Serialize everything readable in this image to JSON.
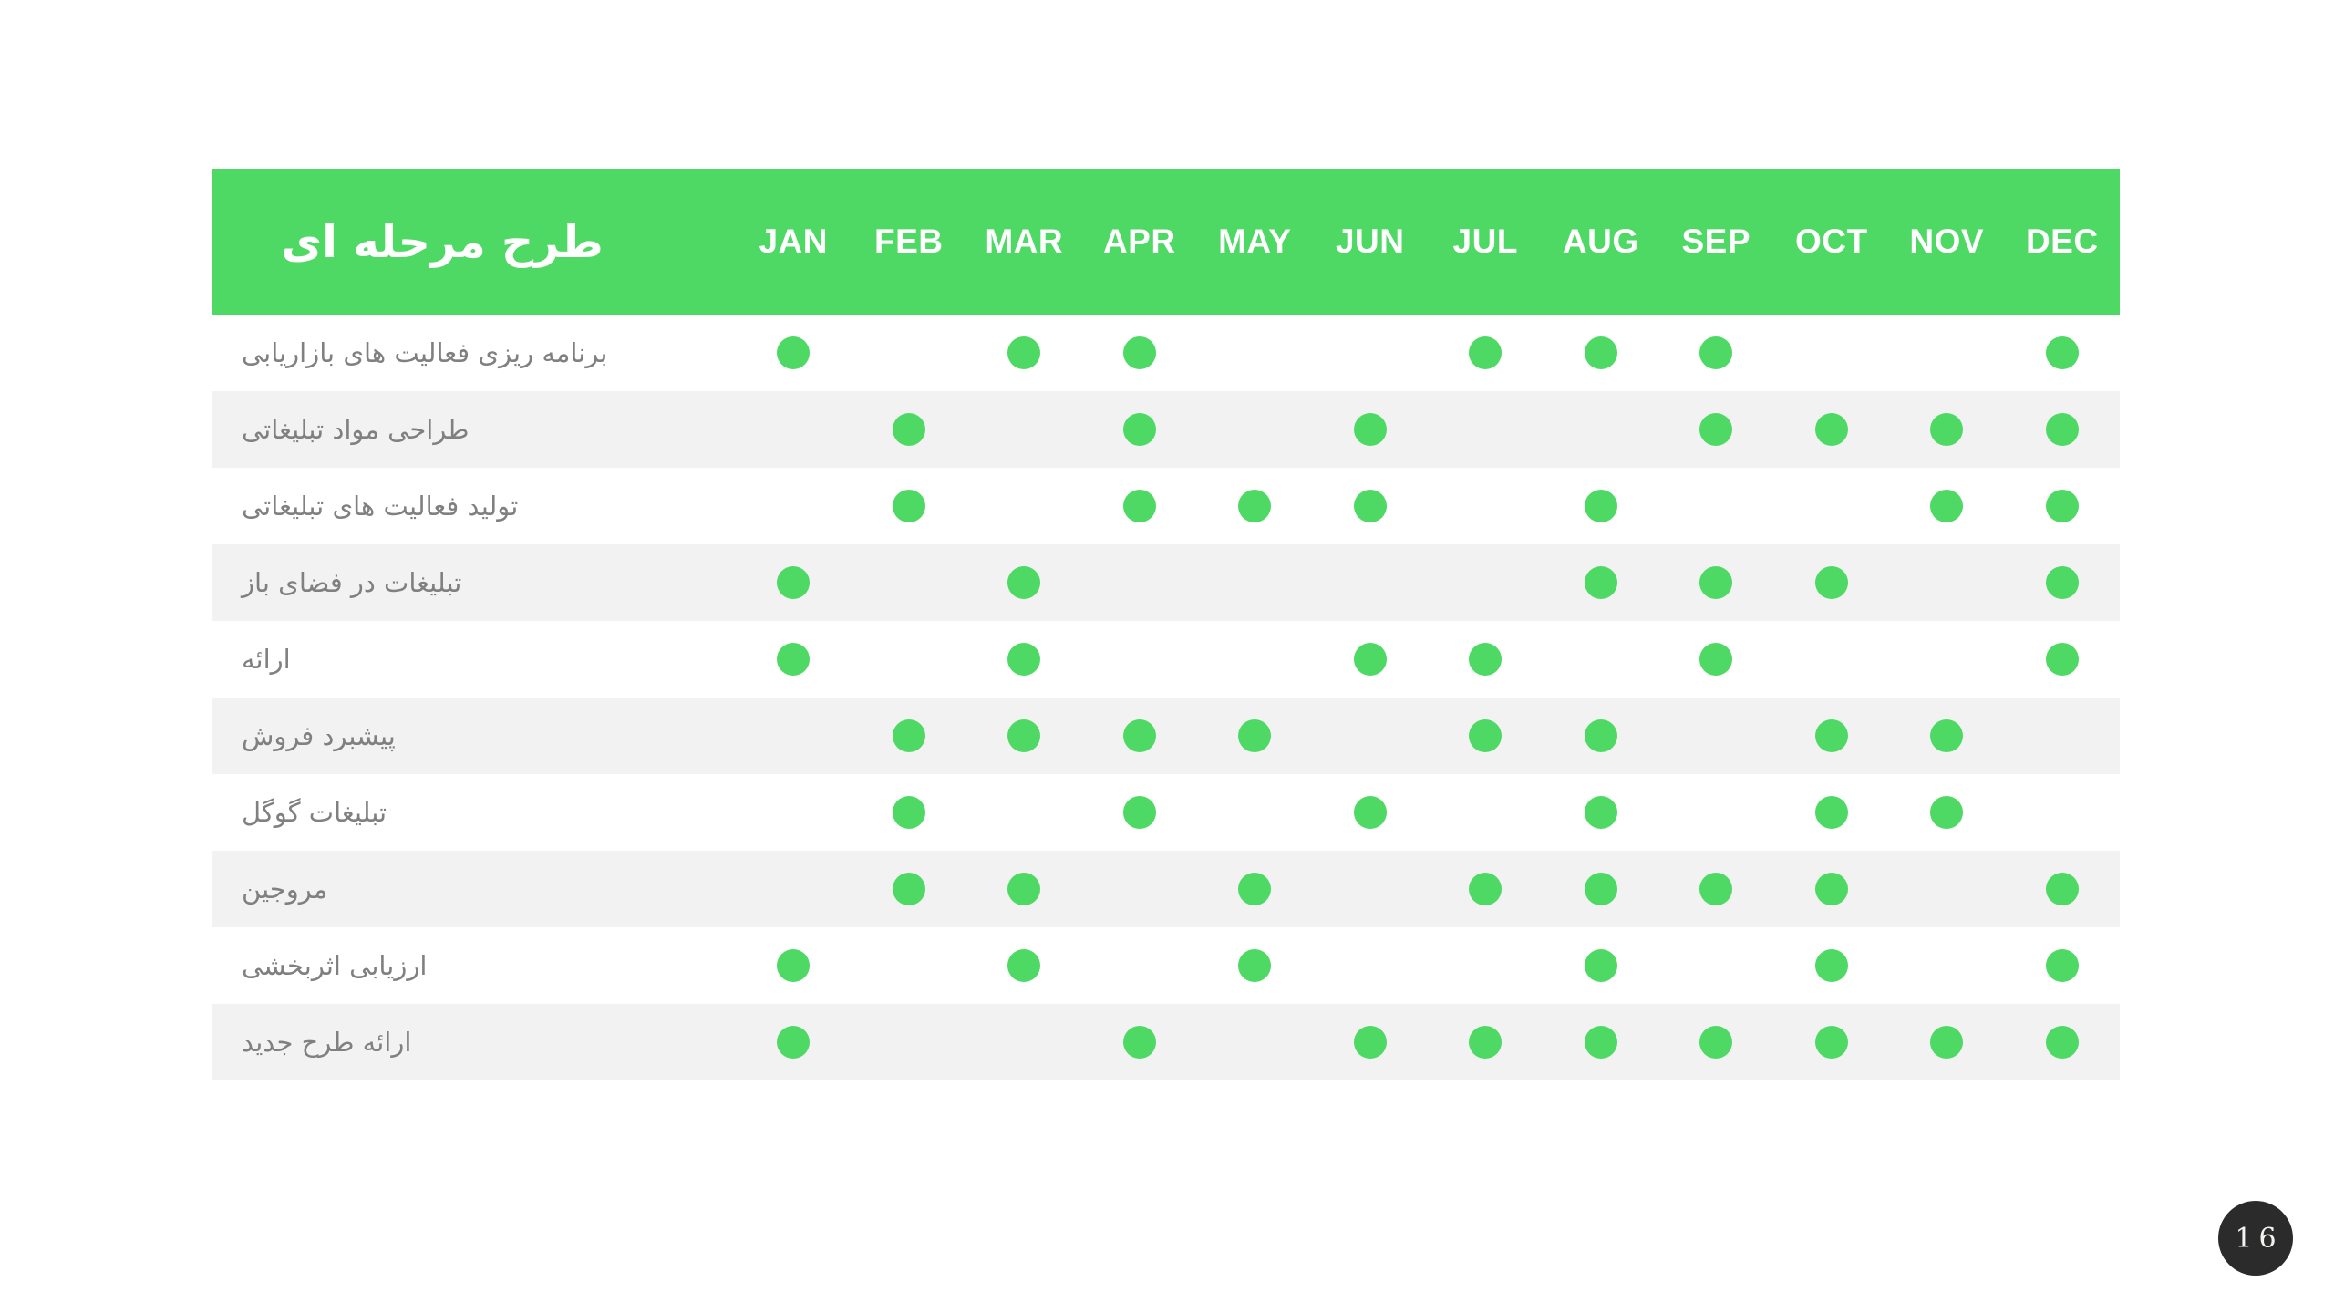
{
  "chart_data": {
    "type": "table",
    "title": "طرح مرحله ای",
    "columns": [
      "JAN",
      "FEB",
      "MAR",
      "APR",
      "MAY",
      "JUN",
      "JUL",
      "AUG",
      "SEP",
      "OCT",
      "NOV",
      "DEC"
    ],
    "marker": "green-dot",
    "marker_color": "#4dd964",
    "rows": [
      {
        "label": "برنامه ریزی فعالیت های بازاریابی",
        "active_months": [
          "JAN",
          "MAR",
          "APR",
          "JUL",
          "AUG",
          "SEP",
          "DEC"
        ]
      },
      {
        "label": "طراحی مواد تبلیغاتی",
        "active_months": [
          "FEB",
          "APR",
          "JUN",
          "SEP",
          "OCT",
          "NOV",
          "DEC"
        ]
      },
      {
        "label": "تولید فعالیت های تبلیغاتی",
        "active_months": [
          "FEB",
          "APR",
          "MAY",
          "JUN",
          "AUG",
          "NOV",
          "DEC"
        ]
      },
      {
        "label": "تبلیغات در فضای باز",
        "active_months": [
          "JAN",
          "MAR",
          "AUG",
          "SEP",
          "OCT",
          "DEC"
        ]
      },
      {
        "label": "ارائه",
        "active_months": [
          "JAN",
          "MAR",
          "JUN",
          "JUL",
          "SEP",
          "DEC"
        ]
      },
      {
        "label": "پیشبرد فروش",
        "active_months": [
          "FEB",
          "MAR",
          "APR",
          "MAY",
          "JUL",
          "AUG",
          "OCT",
          "NOV"
        ]
      },
      {
        "label": "تبلیغات گوگل",
        "active_months": [
          "FEB",
          "APR",
          "JUN",
          "AUG",
          "OCT",
          "NOV"
        ]
      },
      {
        "label": "مروجین",
        "active_months": [
          "FEB",
          "MAR",
          "MAY",
          "JUL",
          "AUG",
          "SEP",
          "OCT",
          "DEC"
        ]
      },
      {
        "label": "ارزیابی اثربخشی",
        "active_months": [
          "JAN",
          "MAR",
          "MAY",
          "AUG",
          "OCT",
          "DEC"
        ]
      },
      {
        "label": "ارائه طرح جدید",
        "active_months": [
          "JAN",
          "APR",
          "JUN",
          "JUL",
          "AUG",
          "SEP",
          "OCT",
          "NOV",
          "DEC"
        ]
      }
    ],
    "legend_position": "none",
    "grid": false
  },
  "page": {
    "number": "16"
  },
  "colors": {
    "header_green": "#4dd964",
    "dot_green": "#4dd964",
    "stripe_gray": "#f2f2f2",
    "label_gray": "#808080",
    "badge_dark": "#2b2b2b",
    "background": "#ffffff"
  }
}
